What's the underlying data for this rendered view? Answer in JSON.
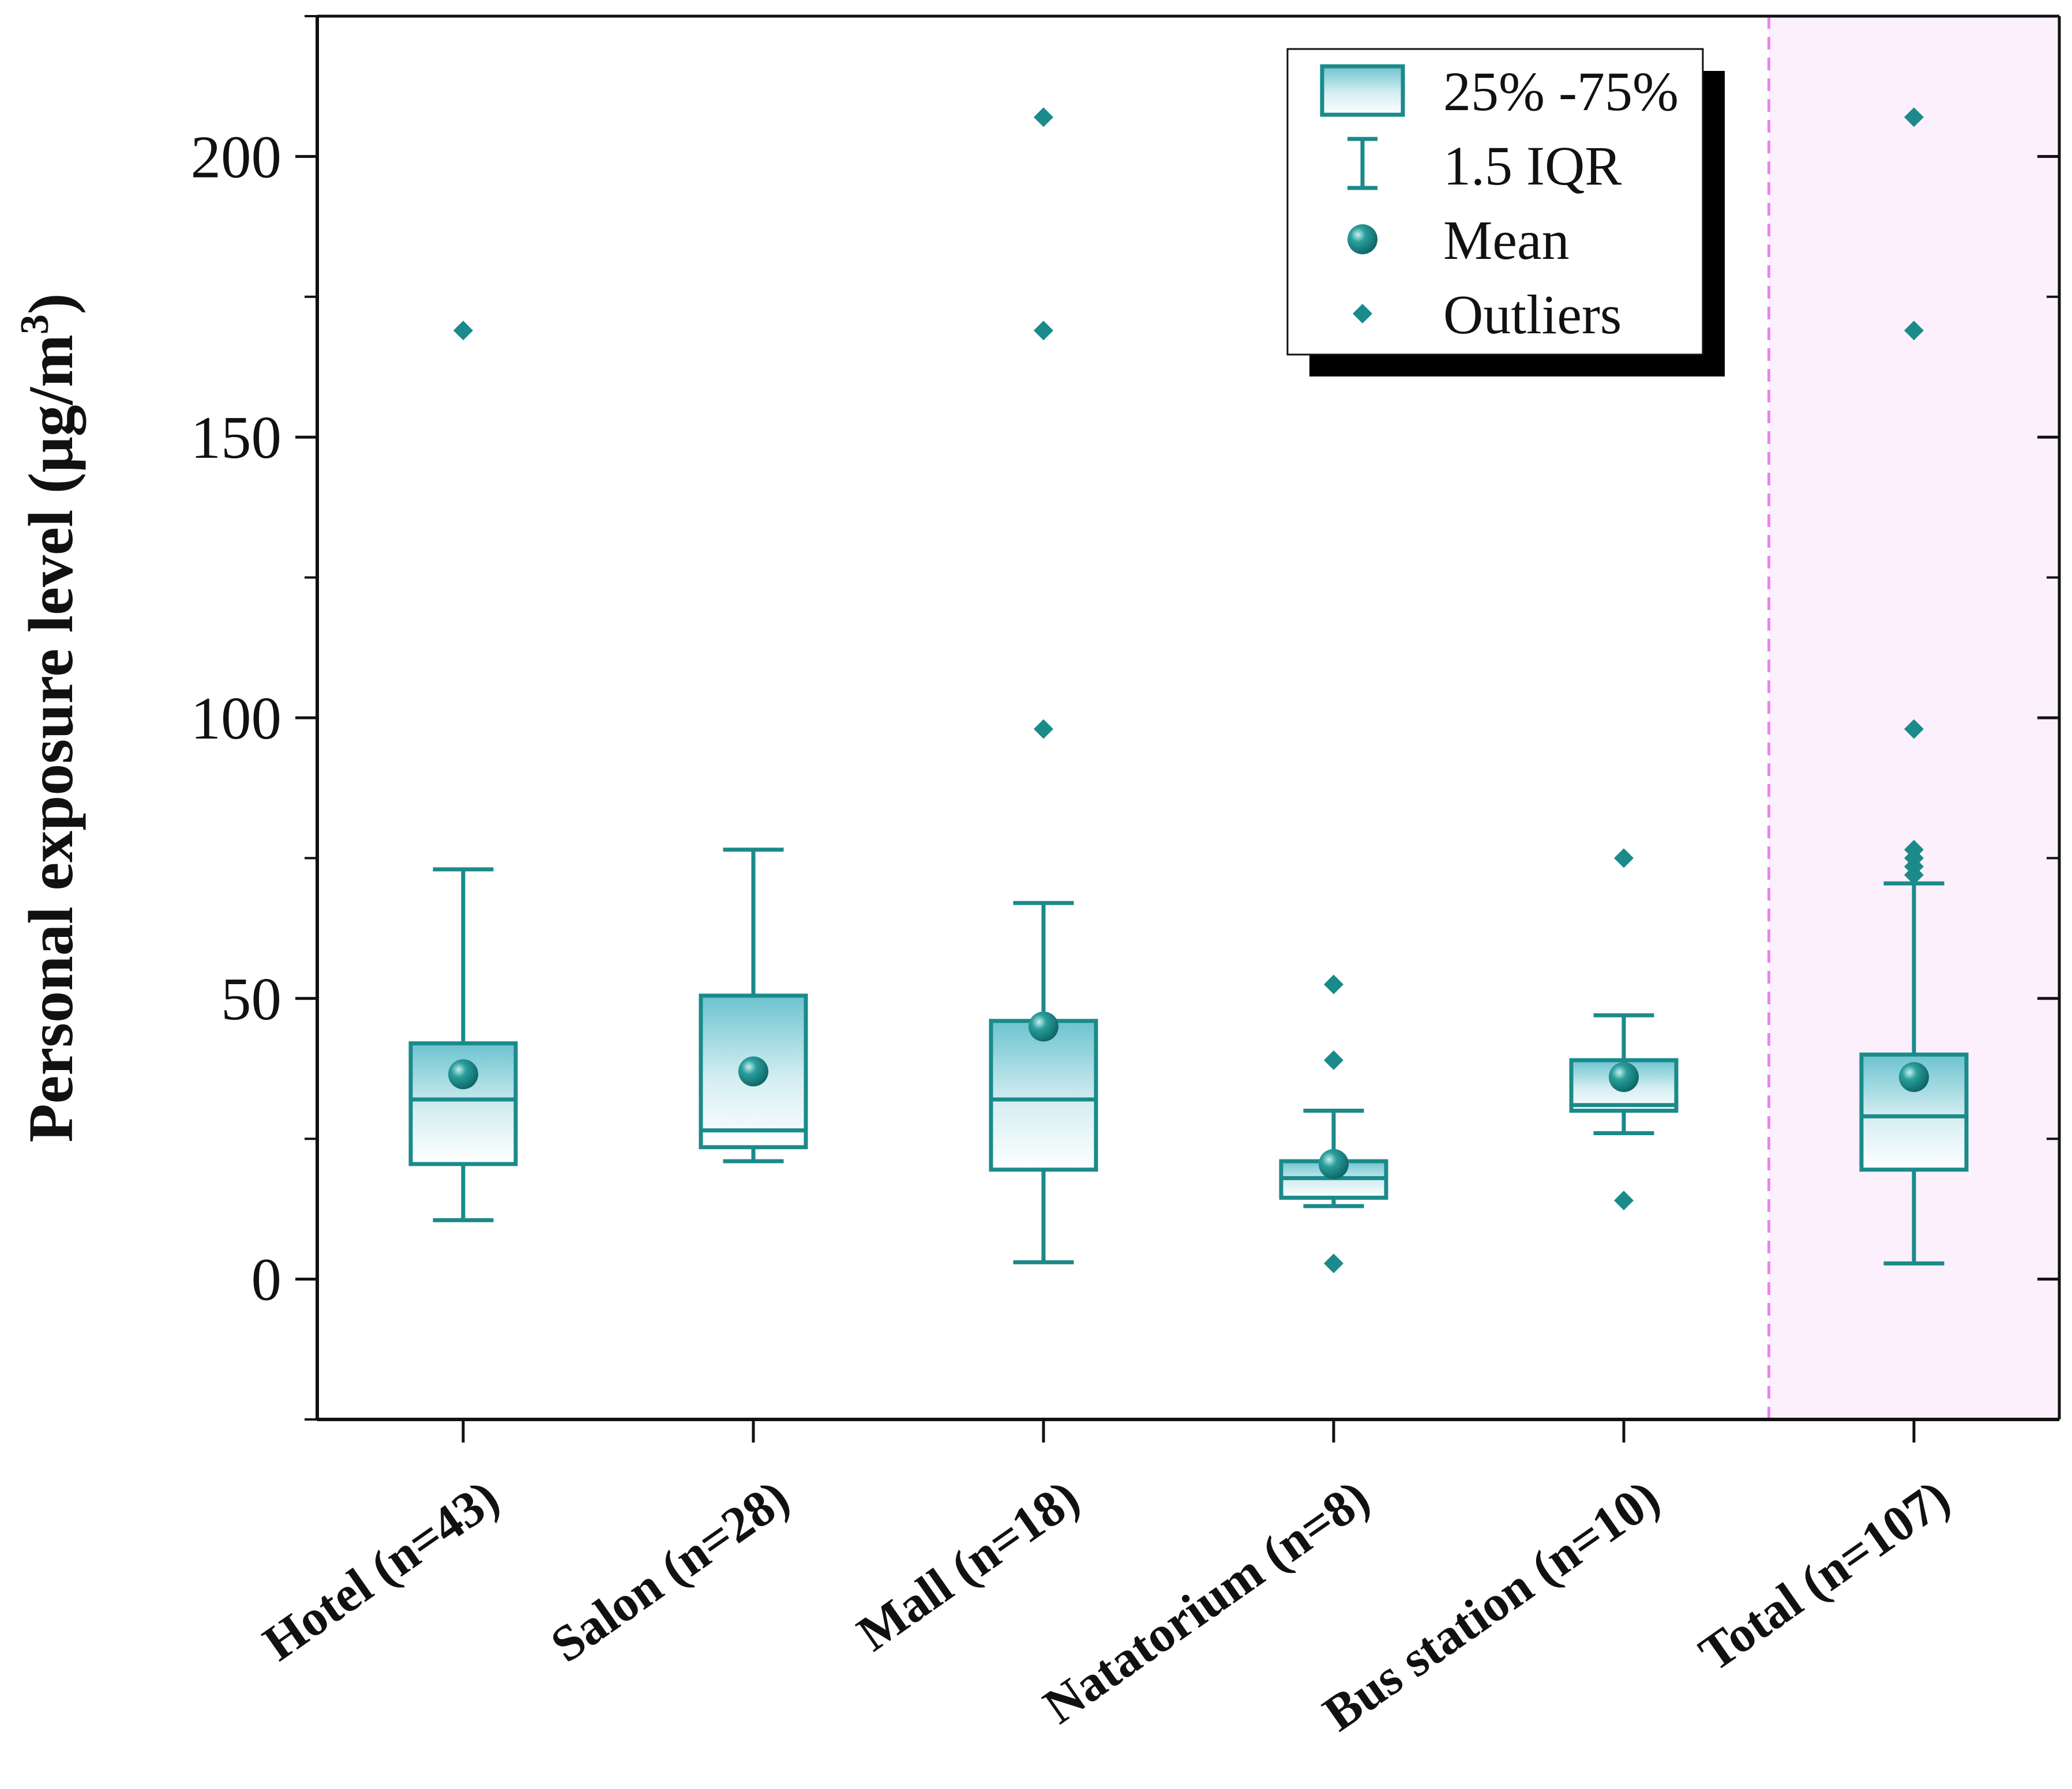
{
  "chart_data": {
    "type": "boxplot",
    "title": "",
    "xlabel": "",
    "ylabel": "Personal exposure level (μg/m",
    "ylabel_superscript": "3",
    "ylabel_close": ")",
    "ylim": [
      -25,
      225
    ],
    "yticks": [
      0,
      50,
      100,
      150,
      200
    ],
    "ytick_labels": [
      "0",
      "50",
      "100",
      "150",
      "200"
    ],
    "grid": false,
    "legend_position": "top-right",
    "legend": [
      {
        "key": "box",
        "label": "25% -75%"
      },
      {
        "key": "whisker",
        "label": "1.5 IQR"
      },
      {
        "key": "mean",
        "label": "Mean"
      },
      {
        "key": "outlier",
        "label": "Outliers"
      }
    ],
    "highlight_region": {
      "from_category": "Total (n=107)",
      "color": "#fcf0fc",
      "divider_color": "#ee82ee"
    },
    "series_color": "#1b8a8a",
    "categories": [
      {
        "label": "Hotel (n=43)",
        "whisker_low": 10.5,
        "q1": 20.5,
        "median": 32,
        "q3": 42,
        "whisker_high": 73,
        "mean": 36.5,
        "outliers": [
          169
        ]
      },
      {
        "label": "Salon (n=28)",
        "whisker_low": 21,
        "q1": 23.5,
        "median": 26.5,
        "q3": 50.5,
        "whisker_high": 76.5,
        "mean": 37,
        "outliers": []
      },
      {
        "label": "Mall (n=18)",
        "whisker_low": 3,
        "q1": 19.5,
        "median": 32,
        "q3": 46,
        "whisker_high": 67,
        "mean": 45,
        "outliers": [
          98,
          169,
          207
        ]
      },
      {
        "label": "Natatorium (n=8)",
        "whisker_low": 13,
        "q1": 14.5,
        "median": 18,
        "q3": 21,
        "whisker_high": 30,
        "mean": 20.5,
        "outliers": [
          2.8,
          39,
          52.5
        ]
      },
      {
        "label": "Bus station (n=10)",
        "whisker_low": 26,
        "q1": 30,
        "median": 31,
        "q3": 39,
        "whisker_high": 47,
        "mean": 36,
        "outliers": [
          14,
          75
        ]
      },
      {
        "label": "Total (n=107)",
        "whisker_low": 2.8,
        "q1": 19.5,
        "median": 29,
        "q3": 40,
        "whisker_high": 70.5,
        "mean": 36,
        "outliers": [
          72,
          73.5,
          75,
          76.5,
          98,
          169,
          207
        ]
      }
    ]
  }
}
